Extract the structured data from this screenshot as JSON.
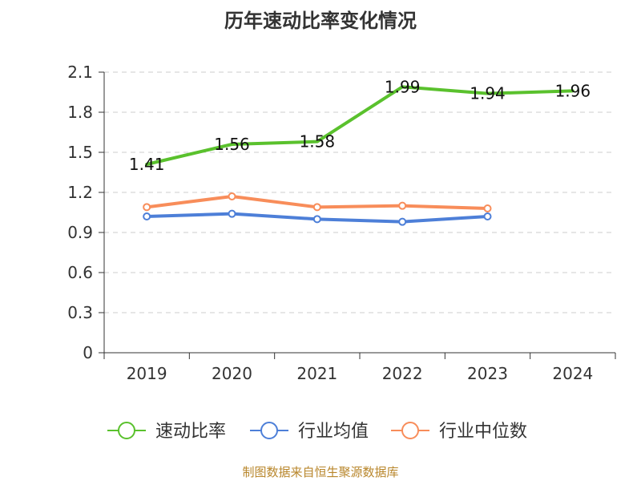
{
  "chart_data": {
    "type": "line",
    "title": "历年速动比率变化情况",
    "categories": [
      "2019",
      "2020",
      "2021",
      "2022",
      "2023",
      "2024"
    ],
    "yticks": [
      "0",
      "0.3",
      "0.6",
      "0.9",
      "1.2",
      "1.5",
      "1.8",
      "2.1"
    ],
    "ylim": [
      0,
      2.1
    ],
    "grid": true,
    "legend_position": "bottom",
    "series": [
      {
        "name": "速动比率",
        "color": "#5ac12d",
        "values": [
          1.41,
          1.56,
          1.58,
          1.99,
          1.94,
          1.96
        ],
        "labels": [
          "1.41",
          "1.56",
          "1.58",
          "1.99",
          "1.94",
          "1.96"
        ],
        "markers": false
      },
      {
        "name": "行业均值",
        "color": "#4d7fd8",
        "values": [
          1.02,
          1.04,
          1.0,
          0.98,
          1.02,
          null
        ],
        "markers": true
      },
      {
        "name": "行业中位数",
        "color": "#f88d5a",
        "values": [
          1.09,
          1.17,
          1.09,
          1.1,
          1.08,
          null
        ],
        "markers": true
      }
    ],
    "source": "制图数据来自恒生聚源数据库"
  }
}
